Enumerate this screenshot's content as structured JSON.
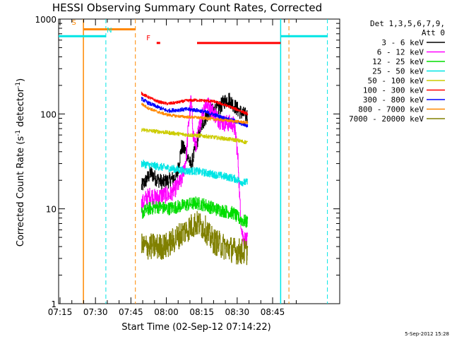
{
  "chart_data": {
    "type": "line",
    "title": "HESSI Observing Summary Count Rates, Corrected",
    "xlabel": "Start Time (02-Sep-12 07:14:22)",
    "ylabel_main": "Corrected Count Rate (s",
    "ylabel_sup1": "-1",
    "ylabel_mid": " detector",
    "ylabel_sup2": "-1",
    "ylabel_end": ")",
    "y_scale": "log",
    "ylim": [
      1,
      1000
    ],
    "y_ticks": [
      {
        "v": 1,
        "label": "1"
      },
      {
        "v": 10,
        "label": "10"
      },
      {
        "v": 100,
        "label": "100"
      },
      {
        "v": 1000,
        "label": "1000"
      }
    ],
    "x_range_min": [
      0,
      119
    ],
    "x_ticks": [
      {
        "m": 0.6,
        "label": "07:15"
      },
      {
        "m": 15.6,
        "label": "07:30"
      },
      {
        "m": 30.6,
        "label": "07:45"
      },
      {
        "m": 45.6,
        "label": "08:00"
      },
      {
        "m": 60.6,
        "label": "08:15"
      },
      {
        "m": 75.6,
        "label": "08:30"
      },
      {
        "m": 90.6,
        "label": "08:45"
      }
    ],
    "legend": {
      "position": "right",
      "header1": "Det 1,3,5,6,7,9,",
      "header2": "Att 0"
    },
    "series": [
      {
        "name": "3 - 6 keV",
        "color": "#000000",
        "points": [
          [
            35,
            17
          ],
          [
            37,
            20
          ],
          [
            39,
            24
          ],
          [
            41,
            21
          ],
          [
            44,
            19
          ],
          [
            47,
            20
          ],
          [
            50,
            22
          ],
          [
            52,
            45
          ],
          [
            54,
            40
          ],
          [
            56,
            28
          ],
          [
            58,
            45
          ],
          [
            60,
            70
          ],
          [
            62,
            90
          ],
          [
            64,
            105
          ],
          [
            66,
            110
          ],
          [
            68,
            115
          ],
          [
            70,
            135
          ],
          [
            72,
            145
          ],
          [
            74,
            125
          ],
          [
            76,
            110
          ],
          [
            78,
            100
          ],
          [
            80,
            95
          ]
        ],
        "noise": 0.08
      },
      {
        "name": "6 - 12 keV",
        "color": "#ff00ff",
        "points": [
          [
            35,
            11
          ],
          [
            37,
            13
          ],
          [
            39,
            14
          ],
          [
            41,
            13
          ],
          [
            44,
            14
          ],
          [
            47,
            14
          ],
          [
            50,
            17
          ],
          [
            52,
            20
          ],
          [
            54,
            35
          ],
          [
            55,
            80
          ],
          [
            56,
            140
          ],
          [
            57,
            60
          ],
          [
            58,
            45
          ],
          [
            60,
            85
          ],
          [
            62,
            130
          ],
          [
            64,
            120
          ],
          [
            66,
            100
          ],
          [
            68,
            85
          ],
          [
            70,
            80
          ],
          [
            72,
            80
          ],
          [
            74,
            78
          ],
          [
            75,
            60
          ],
          [
            76,
            30
          ],
          [
            77,
            8
          ],
          [
            78,
            5
          ],
          [
            80,
            4.5
          ]
        ],
        "noise": 0.09
      },
      {
        "name": "12 - 25 keV",
        "color": "#00dd00",
        "points": [
          [
            35,
            9
          ],
          [
            38,
            10
          ],
          [
            42,
            10.5
          ],
          [
            46,
            10
          ],
          [
            50,
            10.5
          ],
          [
            54,
            11
          ],
          [
            58,
            11.5
          ],
          [
            62,
            11
          ],
          [
            66,
            10
          ],
          [
            70,
            9.5
          ],
          [
            74,
            9
          ],
          [
            76,
            8
          ],
          [
            78,
            7.5
          ],
          [
            80,
            7.2
          ]
        ],
        "noise": 0.07
      },
      {
        "name": "25 - 50 keV",
        "color": "#00e5e5",
        "points": [
          [
            35,
            30
          ],
          [
            38,
            29
          ],
          [
            42,
            28
          ],
          [
            46,
            27
          ],
          [
            50,
            26
          ],
          [
            54,
            25
          ],
          [
            58,
            25
          ],
          [
            62,
            24
          ],
          [
            66,
            23
          ],
          [
            70,
            22
          ],
          [
            74,
            21
          ],
          [
            76,
            20
          ],
          [
            78,
            19
          ],
          [
            80,
            19
          ]
        ],
        "noise": 0.04
      },
      {
        "name": "50 - 100 keV",
        "color": "#cccc00",
        "points": [
          [
            35,
            68
          ],
          [
            40,
            66
          ],
          [
            45,
            64
          ],
          [
            50,
            62
          ],
          [
            55,
            60
          ],
          [
            60,
            59
          ],
          [
            65,
            57
          ],
          [
            70,
            55
          ],
          [
            75,
            53
          ],
          [
            78,
            51
          ],
          [
            80,
            50
          ]
        ],
        "noise": 0.02
      },
      {
        "name": "100 - 300 keV",
        "color": "#ff0000",
        "points": [
          [
            35,
            165
          ],
          [
            38,
            150
          ],
          [
            42,
            135
          ],
          [
            46,
            128
          ],
          [
            50,
            132
          ],
          [
            54,
            138
          ],
          [
            58,
            140
          ],
          [
            62,
            138
          ],
          [
            66,
            135
          ],
          [
            70,
            125
          ],
          [
            74,
            115
          ],
          [
            78,
            105
          ],
          [
            80,
            100
          ]
        ],
        "noise": 0.015
      },
      {
        "name": "300 - 800 keV",
        "color": "#0000ff",
        "points": [
          [
            35,
            145
          ],
          [
            38,
            130
          ],
          [
            42,
            118
          ],
          [
            46,
            108
          ],
          [
            50,
            110
          ],
          [
            54,
            112
          ],
          [
            58,
            110
          ],
          [
            62,
            105
          ],
          [
            66,
            98
          ],
          [
            70,
            90
          ],
          [
            74,
            85
          ],
          [
            78,
            78
          ],
          [
            80,
            75
          ]
        ],
        "noise": 0.02
      },
      {
        "name": "800 - 7000 keV",
        "color": "#ff8800",
        "points": [
          [
            35,
            128
          ],
          [
            38,
            115
          ],
          [
            42,
            105
          ],
          [
            46,
            98
          ],
          [
            50,
            95
          ],
          [
            54,
            93
          ],
          [
            58,
            92
          ],
          [
            62,
            90
          ],
          [
            66,
            88
          ],
          [
            70,
            86
          ],
          [
            74,
            84
          ],
          [
            78,
            82
          ],
          [
            80,
            81
          ]
        ],
        "noise": 0.015
      },
      {
        "name": "7000 - 20000 keV",
        "color": "#808000",
        "points": [
          [
            35,
            4
          ],
          [
            40,
            4
          ],
          [
            45,
            4
          ],
          [
            48,
            4.5
          ],
          [
            52,
            5.5
          ],
          [
            56,
            6.5
          ],
          [
            58,
            7
          ],
          [
            60,
            6.8
          ],
          [
            62,
            6.2
          ],
          [
            64,
            5
          ],
          [
            66,
            4.5
          ],
          [
            70,
            4
          ],
          [
            75,
            3.6
          ],
          [
            80,
            3.5
          ]
        ],
        "noise": 0.14
      }
    ],
    "flags": [
      {
        "label": "S",
        "color": "#ff8800",
        "x0": 10.5,
        "x1": 32.5,
        "yval": 780
      },
      {
        "label": "N",
        "color": "#00e5e5",
        "x0": 0,
        "x1": 20,
        "yval": 660
      },
      {
        "label": "N",
        "color": "#00e5e5",
        "x0": 94,
        "x1": 113.8,
        "yval": 660
      },
      {
        "label": "F",
        "color": "#ff0000",
        "x0": 41.5,
        "x1": 43,
        "yval": 560
      },
      {
        "label": "F",
        "color": "#ff0000",
        "x0": 58.6,
        "x1": 94,
        "yval": 560
      }
    ],
    "flag_labels": [
      {
        "label": "S",
        "color": "#ff8800",
        "m": 6.5,
        "yval": 870
      },
      {
        "label": "N",
        "color": "#00e5e5",
        "m": 21.5,
        "yval": 720
      },
      {
        "label": "F",
        "color": "#ff0000",
        "m": 38,
        "yval": 600
      }
    ],
    "vlines": [
      {
        "m": 10.5,
        "color": "#ff8800",
        "style": "solid"
      },
      {
        "m": 20.0,
        "color": "#00e5e5",
        "style": "dashed"
      },
      {
        "m": 32.5,
        "color": "#ff8800",
        "style": "dashed"
      },
      {
        "m": 94.0,
        "color": "#00e5e5",
        "style": "solid"
      },
      {
        "m": 97.5,
        "color": "#ff8800",
        "style": "dashed"
      },
      {
        "m": 113.8,
        "color": "#00e5e5",
        "style": "dashed"
      }
    ],
    "footer_date": "5-Sep-2012 15:28"
  }
}
